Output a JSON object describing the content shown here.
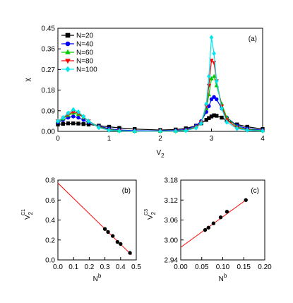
{
  "chart_data": [
    {
      "type": "line",
      "annotation": "(a)",
      "xlabel": [
        "V",
        "2"
      ],
      "ylabel": "χ",
      "xlim": [
        0,
        4
      ],
      "xticks": [
        0,
        1,
        2,
        3,
        4
      ],
      "ylim": [
        0,
        0.45
      ],
      "yticks": [
        {
          "value": 0,
          "label": "0.00"
        },
        0.09,
        0.18,
        0.27,
        0.36,
        0.45
      ],
      "legend": "upper left",
      "x": [
        0,
        0.1,
        0.2,
        0.3,
        0.4,
        0.5,
        0.6,
        0.8,
        1.0,
        1.2,
        1.5,
        2.0,
        2.3,
        2.5,
        2.7,
        2.8,
        2.9,
        2.95,
        3.0,
        3.05,
        3.1,
        3.2,
        3.3,
        3.5,
        3.7,
        4.0
      ],
      "series": [
        {
          "name": "N=20",
          "color": "#000000",
          "marker": "square",
          "values": [
            0.03,
            0.033,
            0.035,
            0.035,
            0.034,
            0.032,
            0.03,
            0.025,
            0.02,
            0.015,
            0.01,
            0.006,
            0.008,
            0.013,
            0.025,
            0.035,
            0.05,
            0.058,
            0.065,
            0.07,
            0.068,
            0.06,
            0.048,
            0.03,
            0.02,
            0.01
          ]
        },
        {
          "name": "N=40",
          "color": "#0000ff",
          "marker": "circle",
          "values": [
            0.04,
            0.05,
            0.06,
            0.065,
            0.06,
            0.05,
            0.04,
            0.022,
            0.012,
            0.006,
            0.003,
            0.002,
            0.004,
            0.008,
            0.025,
            0.045,
            0.085,
            0.11,
            0.14,
            0.15,
            0.14,
            0.1,
            0.06,
            0.025,
            0.012,
            0.005
          ]
        },
        {
          "name": "N=60",
          "color": "#00cc00",
          "marker": "triangle-up",
          "values": [
            0.045,
            0.055,
            0.07,
            0.08,
            0.075,
            0.06,
            0.045,
            0.02,
            0.008,
            0.003,
            0.001,
            0.001,
            0.002,
            0.005,
            0.02,
            0.04,
            0.1,
            0.16,
            0.23,
            0.24,
            0.2,
            0.12,
            0.06,
            0.02,
            0.008,
            0.003
          ]
        },
        {
          "name": "N=80",
          "color": "#ff0000",
          "marker": "triangle-down",
          "values": [
            0.045,
            0.058,
            0.075,
            0.085,
            0.08,
            0.062,
            0.045,
            0.018,
            0.006,
            0.002,
            0.001,
            0.001,
            0.001,
            0.004,
            0.018,
            0.04,
            0.11,
            0.2,
            0.31,
            0.3,
            0.22,
            0.11,
            0.05,
            0.015,
            0.006,
            0.002
          ]
        },
        {
          "name": "N=100",
          "color": "#00e5ee",
          "marker": "diamond",
          "values": [
            0.045,
            0.06,
            0.08,
            0.095,
            0.085,
            0.065,
            0.045,
            0.016,
            0.005,
            0.002,
            0.001,
            0.001,
            0.001,
            0.003,
            0.015,
            0.035,
            0.12,
            0.24,
            0.41,
            0.34,
            0.22,
            0.1,
            0.04,
            0.012,
            0.005,
            0.002
          ]
        }
      ]
    },
    {
      "type": "scatter",
      "annotation": "(b)",
      "xlabel": [
        "N",
        "b"
      ],
      "ylabel": [
        "V",
        "2",
        "C1"
      ],
      "xlim": [
        0,
        0.5
      ],
      "xticks": [
        {
          "value": 0,
          "label": "0.0"
        },
        0.1,
        0.2,
        0.3,
        0.4,
        0.5
      ],
      "ylim": [
        0,
        0.8
      ],
      "yticks": [
        {
          "value": 0,
          "label": "0.0"
        },
        0.2,
        0.4,
        0.6,
        0.8
      ],
      "color": "#000000",
      "x": [
        0.3,
        0.32,
        0.35,
        0.38,
        0.4,
        0.46
      ],
      "values": [
        0.31,
        0.28,
        0.24,
        0.18,
        0.16,
        0.07
      ],
      "fit": {
        "color": "#ff0000",
        "x": [
          0,
          0.47
        ],
        "values": [
          0.77,
          0.05
        ]
      }
    },
    {
      "type": "scatter",
      "annotation": "(c)",
      "xlabel": [
        "N",
        "b"
      ],
      "ylabel": [
        "V",
        "2",
        "C3"
      ],
      "xlim": [
        0,
        0.2
      ],
      "xticks": [
        {
          "value": 0,
          "label": "0.00"
        },
        0.05,
        {
          "value": 0.1,
          "label": "0.10"
        },
        0.15,
        {
          "value": 0.2,
          "label": "0.20"
        }
      ],
      "ylim": [
        2.94,
        3.18
      ],
      "yticks": [
        2.94,
        {
          "value": 3,
          "label": "3.00"
        },
        3.06,
        3.12,
        3.18
      ],
      "color": "#000000",
      "x": [
        0.058,
        0.066,
        0.078,
        0.095,
        0.11,
        0.155
      ],
      "values": [
        3.03,
        3.037,
        3.05,
        3.068,
        3.085,
        3.12
      ],
      "fit": {
        "color": "#ff0000",
        "x": [
          0,
          0.155
        ],
        "values": [
          2.978,
          3.12
        ]
      }
    }
  ]
}
